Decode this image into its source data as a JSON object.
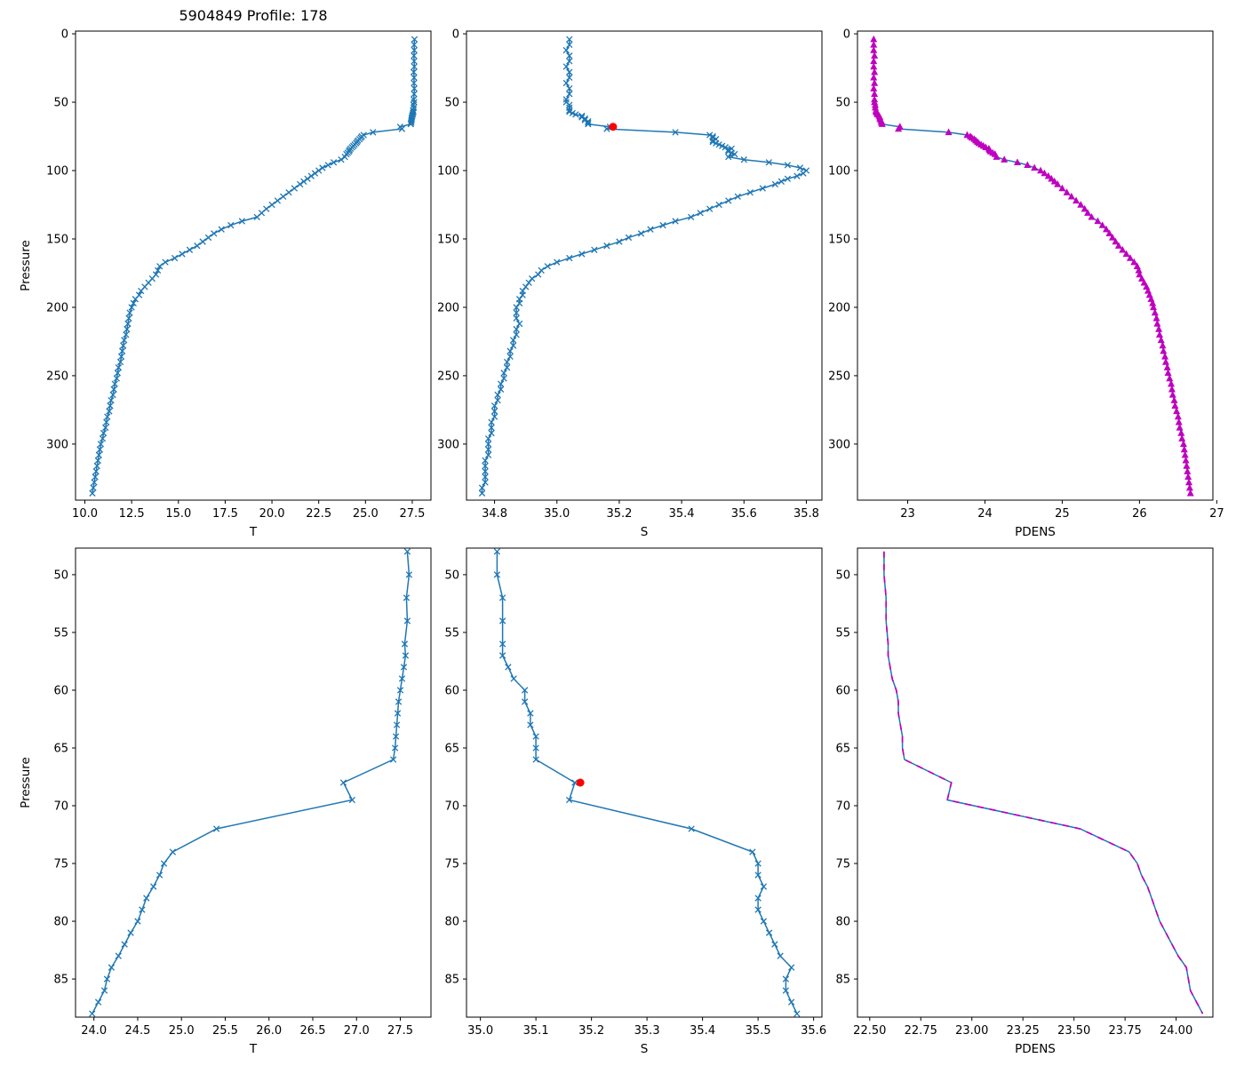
{
  "chart_data": {
    "type": "line",
    "title": "5904849 Profile: 178",
    "colors": {
      "line": "#1f77b4",
      "magenta": "#bf00bf",
      "red": "#ff0000",
      "axes": "#000000"
    },
    "red_dot": {
      "S": 35.18,
      "pressure": 68
    },
    "profile": {
      "pressure": [
        4,
        8,
        12,
        16,
        20,
        24,
        28,
        32,
        36,
        40,
        44,
        48,
        50,
        52,
        54,
        56,
        57,
        58,
        59,
        60,
        61,
        62,
        63,
        64,
        65,
        66,
        68,
        69.5,
        72,
        74,
        75,
        76,
        77,
        78,
        79,
        80,
        81,
        82,
        83,
        84,
        85,
        86,
        87,
        88,
        90,
        92,
        94,
        96,
        98,
        100,
        102,
        104,
        106,
        108,
        110,
        113,
        116,
        119,
        122,
        125,
        128,
        131,
        134,
        137,
        140,
        143,
        146,
        149,
        152,
        155,
        158,
        161,
        164,
        167,
        170,
        173,
        176,
        179,
        182,
        185,
        188,
        191,
        194,
        197,
        200,
        204,
        208,
        212,
        216,
        220,
        224,
        228,
        232,
        236,
        240,
        244,
        248,
        252,
        256,
        260,
        264,
        268,
        272,
        276,
        280,
        284,
        288,
        292,
        296,
        300,
        304,
        308,
        312,
        316,
        320,
        324,
        328,
        332,
        336
      ],
      "T": [
        27.62,
        27.6,
        27.61,
        27.59,
        27.6,
        27.61,
        27.58,
        27.6,
        27.59,
        27.61,
        27.6,
        27.58,
        27.6,
        27.57,
        27.58,
        27.55,
        27.56,
        27.54,
        27.52,
        27.5,
        27.48,
        27.47,
        27.46,
        27.45,
        27.44,
        27.42,
        26.85,
        26.95,
        25.4,
        24.9,
        24.8,
        24.75,
        24.68,
        24.6,
        24.55,
        24.5,
        24.42,
        24.35,
        24.28,
        24.2,
        24.15,
        24.12,
        24.05,
        23.98,
        23.9,
        23.7,
        23.3,
        23.0,
        22.7,
        22.5,
        22.3,
        22.1,
        21.9,
        21.7,
        21.5,
        21.2,
        20.9,
        20.6,
        20.3,
        20.0,
        19.7,
        19.45,
        19.2,
        18.4,
        17.8,
        17.3,
        16.9,
        16.6,
        16.3,
        16.0,
        15.6,
        15.2,
        14.8,
        14.3,
        14.0,
        13.9,
        13.8,
        13.6,
        13.4,
        13.2,
        13.0,
        12.9,
        12.7,
        12.6,
        12.5,
        12.4,
        12.35,
        12.3,
        12.25,
        12.2,
        12.1,
        12.05,
        12.0,
        11.95,
        11.9,
        11.8,
        11.75,
        11.7,
        11.6,
        11.55,
        11.5,
        11.4,
        11.35,
        11.3,
        11.2,
        11.15,
        11.1,
        11.0,
        10.95,
        10.85,
        10.8,
        10.75,
        10.7,
        10.65,
        10.6,
        10.55,
        10.5,
        10.45,
        10.4
      ],
      "S": [
        35.04,
        35.04,
        35.03,
        35.04,
        35.04,
        35.03,
        35.04,
        35.04,
        35.03,
        35.04,
        35.04,
        35.03,
        35.03,
        35.04,
        35.04,
        35.04,
        35.04,
        35.05,
        35.06,
        35.08,
        35.08,
        35.09,
        35.09,
        35.1,
        35.1,
        35.1,
        35.17,
        35.16,
        35.38,
        35.49,
        35.5,
        35.5,
        35.51,
        35.5,
        35.5,
        35.51,
        35.52,
        35.53,
        35.54,
        35.56,
        35.55,
        35.55,
        35.56,
        35.57,
        35.55,
        35.6,
        35.68,
        35.74,
        35.78,
        35.8,
        35.79,
        35.77,
        35.74,
        35.72,
        35.7,
        35.66,
        35.62,
        35.58,
        35.55,
        35.52,
        35.49,
        35.46,
        35.43,
        35.38,
        35.34,
        35.3,
        35.27,
        35.23,
        35.2,
        35.16,
        35.12,
        35.08,
        35.04,
        35.0,
        34.97,
        34.95,
        34.94,
        34.92,
        34.91,
        34.9,
        34.89,
        34.89,
        34.88,
        34.88,
        34.87,
        34.87,
        34.87,
        34.88,
        34.87,
        34.87,
        34.86,
        34.86,
        34.85,
        34.85,
        34.84,
        34.84,
        34.83,
        34.83,
        34.82,
        34.82,
        34.81,
        34.81,
        34.8,
        34.8,
        34.8,
        34.79,
        34.79,
        34.79,
        34.78,
        34.78,
        34.78,
        34.78,
        34.77,
        34.77,
        34.77,
        34.77,
        34.77,
        34.76,
        34.76
      ],
      "PDENS": [
        22.56,
        22.56,
        22.56,
        22.57,
        22.56,
        22.56,
        22.57,
        22.56,
        22.57,
        22.56,
        22.57,
        22.57,
        22.57,
        22.58,
        22.58,
        22.59,
        22.59,
        22.6,
        22.61,
        22.63,
        22.64,
        22.64,
        22.65,
        22.66,
        22.66,
        22.67,
        22.9,
        22.88,
        23.53,
        23.77,
        23.81,
        23.83,
        23.86,
        23.88,
        23.9,
        23.92,
        23.95,
        23.98,
        24.01,
        24.05,
        24.06,
        24.07,
        24.1,
        24.13,
        24.15,
        24.25,
        24.42,
        24.55,
        24.64,
        24.72,
        24.77,
        24.82,
        24.86,
        24.9,
        24.94,
        25.0,
        25.06,
        25.12,
        25.18,
        25.24,
        25.29,
        25.33,
        25.38,
        25.46,
        25.52,
        25.57,
        25.61,
        25.65,
        25.69,
        25.73,
        25.78,
        25.83,
        25.88,
        25.93,
        25.97,
        25.99,
        26.0,
        26.03,
        26.06,
        26.09,
        26.11,
        26.13,
        26.15,
        26.17,
        26.18,
        26.2,
        26.22,
        26.23,
        26.25,
        26.26,
        26.28,
        26.3,
        26.31,
        26.33,
        26.34,
        26.36,
        26.37,
        26.39,
        26.41,
        26.42,
        26.43,
        26.45,
        26.46,
        26.48,
        26.5,
        26.51,
        26.52,
        26.54,
        26.55,
        26.57,
        26.58,
        26.59,
        26.6,
        26.61,
        26.62,
        26.63,
        26.64,
        26.65,
        26.66
      ]
    },
    "subplots": [
      {
        "id": "T-full",
        "x_field": "T",
        "xlabel": "T",
        "ylabel": "Pressure",
        "xlim": [
          9.5,
          28.5
        ],
        "xtick_vals": [
          10,
          12.5,
          15,
          17.5,
          20,
          22.5,
          25,
          27.5
        ],
        "xtick_labels": [
          "10.0",
          "12.5",
          "15.0",
          "17.5",
          "20.0",
          "22.5",
          "25.0",
          "27.5"
        ],
        "ylim": [
          -2,
          341
        ],
        "ytick_vals": [
          0,
          50,
          100,
          150,
          200,
          250,
          300
        ],
        "ytick_labels": [
          "0",
          "50",
          "100",
          "150",
          "200",
          "250",
          "300"
        ],
        "p_min": 0,
        "p_max": 341,
        "marker": "x",
        "show_red_dot": false,
        "overlay_dashed": false
      },
      {
        "id": "S-full",
        "x_field": "S",
        "xlabel": "S",
        "ylabel": "",
        "xlim": [
          34.71,
          35.85
        ],
        "xtick_vals": [
          34.8,
          35.0,
          35.2,
          35.4,
          35.6,
          35.8
        ],
        "xtick_labels": [
          "34.8",
          "35.0",
          "35.2",
          "35.4",
          "35.6",
          "35.8"
        ],
        "ylim": [
          -2,
          341
        ],
        "ytick_vals": [
          0,
          50,
          100,
          150,
          200,
          250,
          300
        ],
        "ytick_labels": [
          "0",
          "50",
          "100",
          "150",
          "200",
          "250",
          "300"
        ],
        "p_min": 0,
        "p_max": 341,
        "marker": "x",
        "show_red_dot": true,
        "overlay_dashed": false
      },
      {
        "id": "PDENS-full",
        "x_field": "PDENS",
        "xlabel": "PDENS",
        "ylabel": "",
        "xlim": [
          22.35,
          26.95
        ],
        "xtick_vals": [
          23,
          24,
          25,
          26,
          27
        ],
        "xtick_labels": [
          "23",
          "24",
          "25",
          "26",
          "27"
        ],
        "ylim": [
          -2,
          341
        ],
        "ytick_vals": [
          0,
          50,
          100,
          150,
          200,
          250,
          300
        ],
        "ytick_labels": [
          "0",
          "50",
          "100",
          "150",
          "200",
          "250",
          "300"
        ],
        "p_min": 0,
        "p_max": 341,
        "marker": "triangle",
        "show_red_dot": false,
        "overlay_dashed": false
      },
      {
        "id": "T-zoom",
        "x_field": "T",
        "xlabel": "T",
        "ylabel": "Pressure",
        "xlim": [
          23.79,
          27.85
        ],
        "xtick_vals": [
          24,
          24.5,
          25,
          25.5,
          26,
          26.5,
          27,
          27.5
        ],
        "xtick_labels": [
          "24.0",
          "24.5",
          "25.0",
          "25.5",
          "26.0",
          "26.5",
          "27.0",
          "27.5"
        ],
        "ylim": [
          47.7,
          88.3
        ],
        "ytick_vals": [
          50,
          55,
          60,
          65,
          70,
          75,
          80,
          85
        ],
        "ytick_labels": [
          "50",
          "55",
          "60",
          "65",
          "70",
          "75",
          "80",
          "85"
        ],
        "p_min": 47,
        "p_max": 89,
        "marker": "x",
        "show_red_dot": false,
        "overlay_dashed": false
      },
      {
        "id": "S-zoom",
        "x_field": "S",
        "xlabel": "S",
        "ylabel": "",
        "xlim": [
          34.975,
          35.615
        ],
        "xtick_vals": [
          35.0,
          35.1,
          35.2,
          35.3,
          35.4,
          35.5,
          35.6
        ],
        "xtick_labels": [
          "35.0",
          "35.1",
          "35.2",
          "35.3",
          "35.4",
          "35.5",
          "35.6"
        ],
        "ylim": [
          47.7,
          88.3
        ],
        "ytick_vals": [
          50,
          55,
          60,
          65,
          70,
          75,
          80,
          85
        ],
        "ytick_labels": [
          "50",
          "55",
          "60",
          "65",
          "70",
          "75",
          "80",
          "85"
        ],
        "p_min": 47,
        "p_max": 89,
        "marker": "x",
        "show_red_dot": true,
        "overlay_dashed": false
      },
      {
        "id": "PDENS-zoom",
        "x_field": "PDENS",
        "xlabel": "PDENS",
        "ylabel": "",
        "xlim": [
          22.44,
          24.18
        ],
        "xtick_vals": [
          22.5,
          22.75,
          23.0,
          23.25,
          23.5,
          23.75,
          24.0
        ],
        "xtick_labels": [
          "22.50",
          "22.75",
          "23.00",
          "23.25",
          "23.50",
          "23.75",
          "24.00"
        ],
        "ylim": [
          47.7,
          88.3
        ],
        "ytick_vals": [
          50,
          55,
          60,
          65,
          70,
          75,
          80,
          85
        ],
        "ytick_labels": [
          "50",
          "55",
          "60",
          "65",
          "70",
          "75",
          "80",
          "85"
        ],
        "p_min": 47,
        "p_max": 89,
        "marker": "none",
        "show_red_dot": false,
        "overlay_dashed": true
      }
    ]
  }
}
